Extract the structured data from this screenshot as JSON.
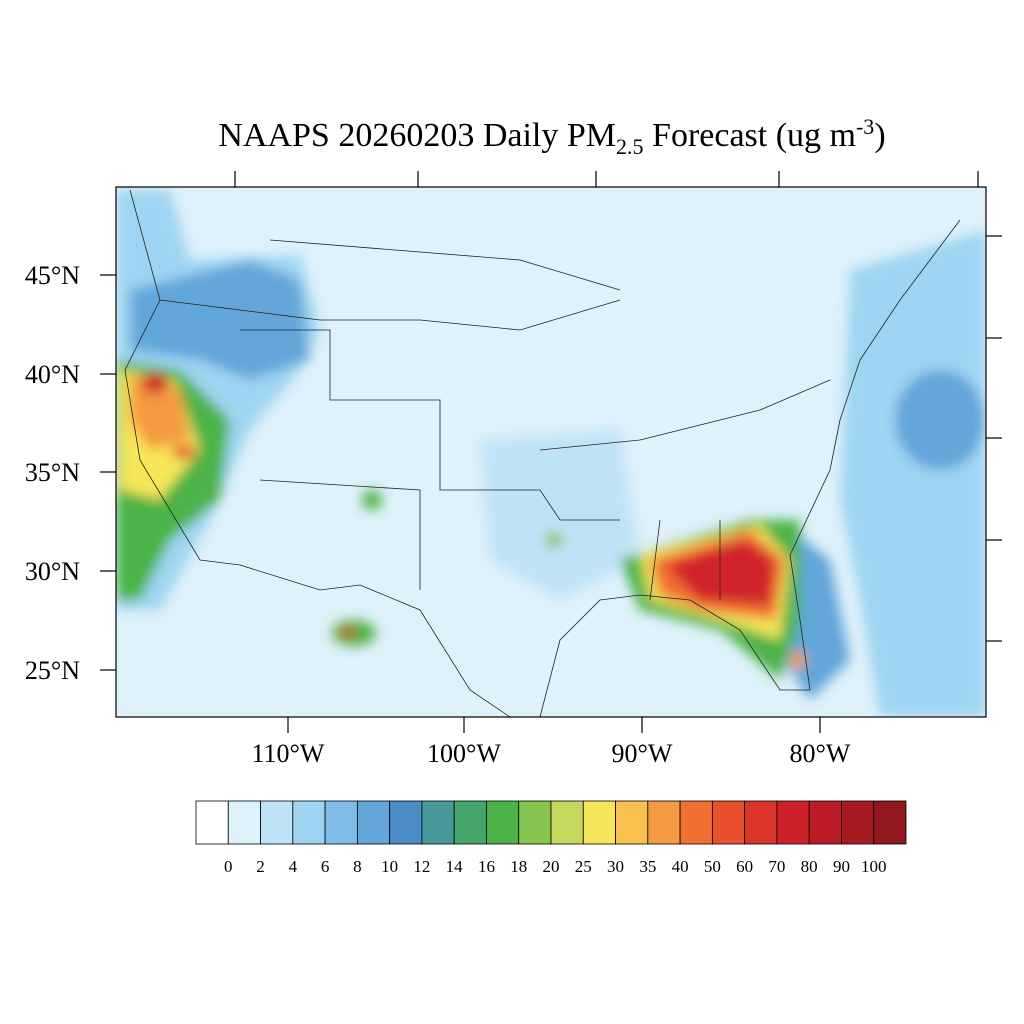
{
  "title": {
    "main": "NAAPS 20260203 Daily PM",
    "subscript": "2.5",
    "middle": " Forecast (ug m",
    "superscript": "-3",
    "end": ")"
  },
  "lat_labels": [
    "45°N",
    "40°N",
    "35°N",
    "30°N",
    "25°N"
  ],
  "lon_labels": [
    "110°W",
    "100°W",
    "90°W",
    "80°W"
  ],
  "colorbar": {
    "colors": [
      "#ffffff",
      "#dff1fa",
      "#bfe3f6",
      "#9fd5f2",
      "#7fbde8",
      "#62a6da",
      "#4a8cc7",
      "#48999c",
      "#45a56c",
      "#4bb347",
      "#86c450",
      "#c3d85c",
      "#f7e65a",
      "#f8c04c",
      "#f59a40",
      "#f26f33",
      "#e9502d",
      "#db352a",
      "#cf2129",
      "#bb1c25",
      "#a81a22",
      "#921820"
    ],
    "levels": [
      0,
      2,
      4,
      6,
      8,
      10,
      12,
      14,
      16,
      18,
      20,
      25,
      30,
      35,
      40,
      50,
      60,
      70,
      80,
      90,
      100
    ]
  }
}
